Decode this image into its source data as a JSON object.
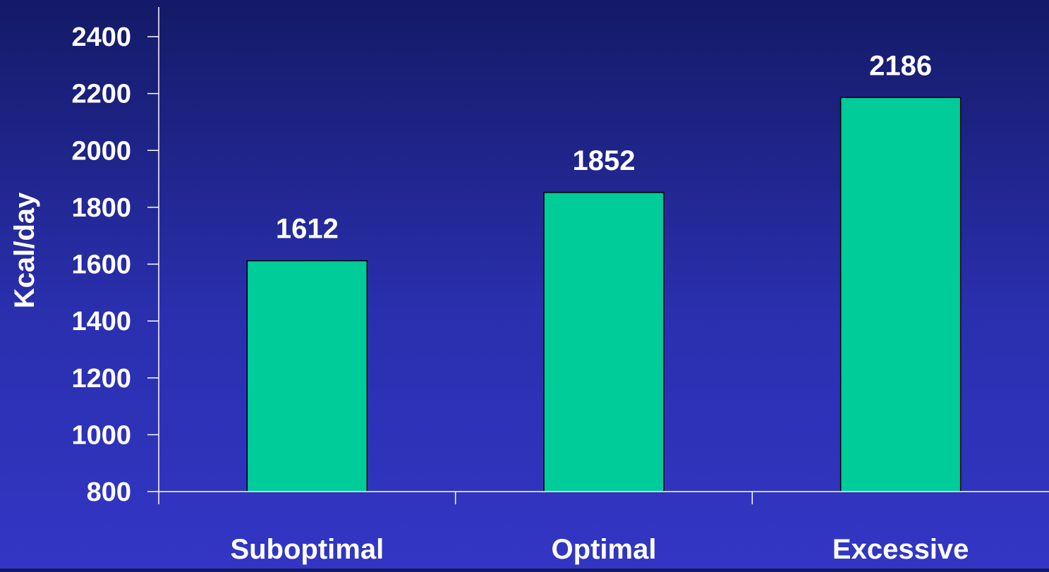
{
  "chart_data": {
    "type": "bar",
    "categories": [
      "Suboptimal",
      "Optimal",
      "Excessive"
    ],
    "values": [
      1612,
      1852,
      2186
    ],
    "data_labels": [
      "1612",
      "1852",
      "2186"
    ],
    "title": "",
    "xlabel": "",
    "ylabel": "Kcal/day",
    "ylim": [
      800,
      2400
    ],
    "yticks": [
      800,
      1000,
      1200,
      1400,
      1600,
      1800,
      2000,
      2200,
      2400
    ],
    "ytick_labels": [
      "800",
      "1000",
      "1200",
      "1400",
      "1600",
      "1800",
      "2000",
      "2200",
      "2400"
    ],
    "grid": false,
    "legend": "none",
    "colors": {
      "bar": "#00cc99",
      "bar_edge": "#000000",
      "axis": "#ffffff",
      "text": "#ffffff",
      "background_top": "#141a66",
      "background_bottom": "#3236c4"
    }
  }
}
